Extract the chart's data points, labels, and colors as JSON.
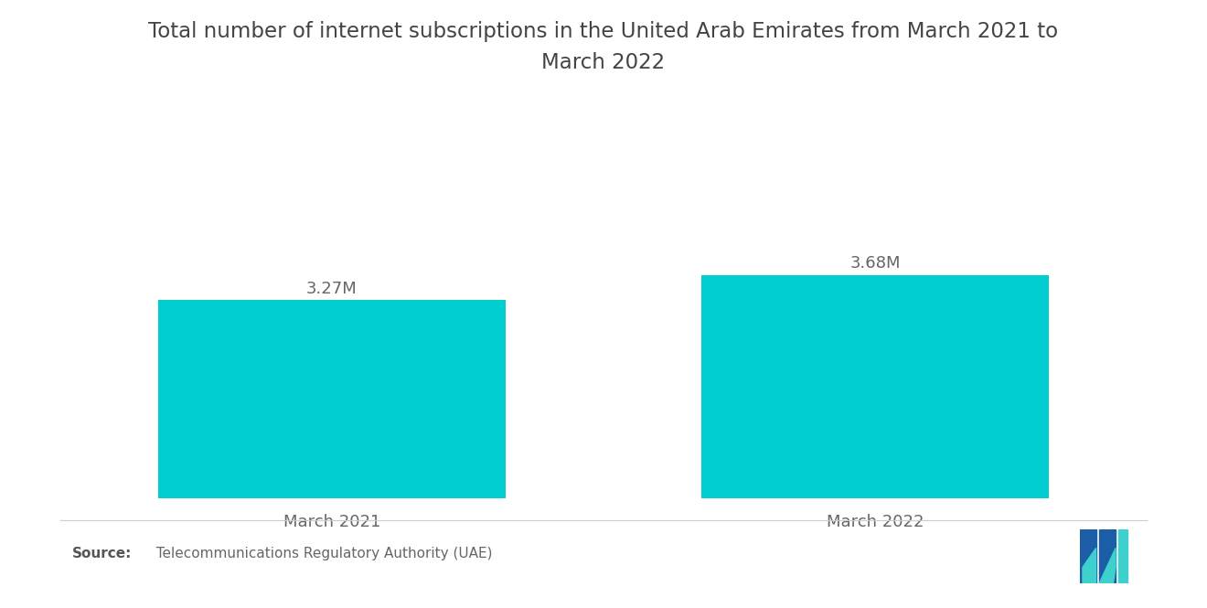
{
  "title_line1": "Total number of internet subscriptions in the United Arab Emirates from March 2021 to",
  "title_line2": "March 2022",
  "categories": [
    "March 2021",
    "March 2022"
  ],
  "values": [
    3.27,
    3.68
  ],
  "labels": [
    "3.27M",
    "3.68M"
  ],
  "bar_color": "#00CED1",
  "background_color": "#ffffff",
  "title_fontsize": 16.5,
  "label_fontsize": 13,
  "tick_fontsize": 13,
  "source_bold": "Source:",
  "source_normal": "  Telecommunications Regulatory Authority (UAE)",
  "ylim": [
    0,
    5.5
  ],
  "bar_positions": [
    0.25,
    0.75
  ],
  "bar_width": 0.32
}
